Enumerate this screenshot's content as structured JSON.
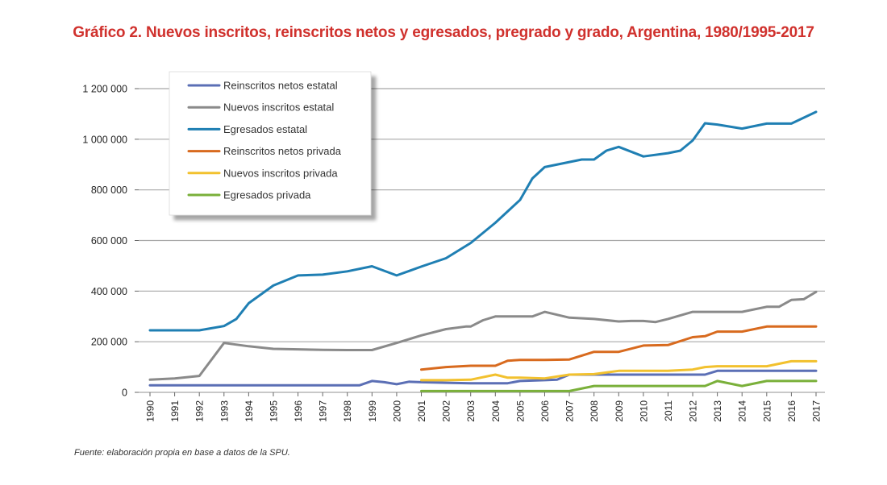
{
  "chart_data": {
    "type": "line",
    "title": "Gráfico 2. Nuevos inscritos, reinscritos netos y egresados, pregrado y grado, Argentina, 1980/1995-2017",
    "source": "Fuente: elaboración propia en base a datos de la SPU.",
    "xlabel": "",
    "ylabel": "",
    "ylim": [
      0,
      1200000
    ],
    "xlim": [
      1990,
      2017
    ],
    "yticks": [
      0,
      200000,
      400000,
      600000,
      800000,
      1000000,
      1200000
    ],
    "ytick_labels": [
      "0",
      "200 000",
      "400 000",
      "600 000",
      "800 000",
      "1 000 000",
      "1 200 000"
    ],
    "xtick_labels": [
      "1990",
      "1991",
      "1992",
      "1993",
      "1994",
      "1995",
      "1996",
      "1997",
      "1998",
      "1999",
      "2000",
      "2001",
      "2002",
      "2003",
      "2004",
      "2005",
      "2006",
      "2007",
      "2008",
      "2009",
      "2010",
      "2011",
      "2012",
      "2013",
      "2014",
      "2015",
      "2016",
      "2017"
    ],
    "grid": true,
    "legend_position": "top-left",
    "series": [
      {
        "name": "Reinscritos netos estatal",
        "color": "#5b6fb5",
        "x": [
          1990,
          1991,
          1992,
          1993,
          1994,
          1995,
          1996,
          1997,
          1998,
          1998.5,
          1999,
          1999.5,
          2000,
          2000.5,
          2001,
          2002,
          2003,
          2004,
          2004.5,
          2005,
          2006,
          2006.5,
          2007,
          2008,
          2009,
          2010,
          2011,
          2012,
          2012.5,
          2013,
          2014,
          2015,
          2016,
          2017
        ],
        "y": [
          28000,
          28000,
          28000,
          28000,
          28000,
          28000,
          28000,
          28000,
          28000,
          28000,
          45000,
          40000,
          32000,
          42000,
          40000,
          38000,
          36000,
          36000,
          36000,
          45000,
          48000,
          50000,
          70000,
          70000,
          70000,
          70000,
          70000,
          70000,
          70000,
          85000,
          85000,
          85000,
          85000,
          85000
        ]
      },
      {
        "name": "Nuevos inscritos estatal",
        "color": "#8a8a8a",
        "x": [
          1990,
          1991,
          1992,
          1993,
          1994,
          1995,
          1996,
          1997,
          1998,
          1999,
          2000,
          2001,
          2002,
          2002.8,
          2003,
          2003.5,
          2004,
          2005,
          2005.5,
          2006,
          2007,
          2008,
          2009,
          2009.5,
          2010,
          2010.5,
          2011,
          2012,
          2013,
          2014,
          2015,
          2015.5,
          2016,
          2016.5,
          2017
        ],
        "y": [
          50000,
          55000,
          65000,
          195000,
          182000,
          172000,
          170000,
          168000,
          167000,
          167000,
          195000,
          225000,
          250000,
          260000,
          260000,
          285000,
          300000,
          300000,
          300000,
          318000,
          295000,
          290000,
          280000,
          282000,
          282000,
          278000,
          290000,
          318000,
          318000,
          318000,
          338000,
          338000,
          365000,
          368000,
          397000
        ]
      },
      {
        "name": "Egresados estatal",
        "color": "#1f7fb3",
        "x": [
          1990,
          1991,
          1992,
          1993,
          1993.5,
          1994,
          1995,
          1996,
          1997,
          1998,
          1999,
          2000,
          2001,
          2002,
          2003,
          2004,
          2005,
          2005.5,
          2006,
          2007,
          2007.5,
          2008,
          2008.5,
          2009,
          2010,
          2011,
          2011.5,
          2012,
          2012.5,
          2013,
          2014,
          2015,
          2016,
          2017
        ],
        "y": [
          245000,
          245000,
          245000,
          262000,
          290000,
          352000,
          422000,
          462000,
          465000,
          478000,
          498000,
          462000,
          497000,
          530000,
          590000,
          670000,
          760000,
          845000,
          890000,
          910000,
          920000,
          920000,
          955000,
          970000,
          932000,
          945000,
          955000,
          995000,
          1063000,
          1058000,
          1042000,
          1062000,
          1062000,
          1108000
        ]
      },
      {
        "name": "Reinscritos netos privada",
        "color": "#d86a1e",
        "x": [
          2001,
          2002,
          2003,
          2004,
          2004.5,
          2005,
          2006,
          2007,
          2008,
          2009,
          2010,
          2011,
          2012,
          2012.5,
          2013,
          2014,
          2015,
          2016,
          2017
        ],
        "y": [
          90000,
          100000,
          105000,
          105000,
          125000,
          128000,
          128000,
          130000,
          160000,
          160000,
          185000,
          187000,
          218000,
          222000,
          240000,
          240000,
          260000,
          260000,
          260000
        ]
      },
      {
        "name": "Nuevos inscritos privada",
        "color": "#f2c12e",
        "x": [
          2001,
          2002,
          2003,
          2004,
          2004.5,
          2005,
          2006,
          2007,
          2008,
          2009,
          2010,
          2011,
          2012,
          2012.5,
          2013,
          2014,
          2015,
          2016,
          2017
        ],
        "y": [
          48000,
          48000,
          50000,
          70000,
          58000,
          58000,
          55000,
          70000,
          72000,
          85000,
          85000,
          85000,
          90000,
          100000,
          103000,
          103000,
          103000,
          123000,
          123000
        ]
      },
      {
        "name": "Egresados privada",
        "color": "#7ab03a",
        "x": [
          2001,
          2002,
          2003,
          2004,
          2005,
          2006,
          2007,
          2008,
          2009,
          2010,
          2011,
          2012,
          2012.5,
          2013,
          2014,
          2015,
          2016,
          2017
        ],
        "y": [
          5000,
          5000,
          5000,
          5000,
          5000,
          5000,
          5000,
          25000,
          25000,
          25000,
          25000,
          25000,
          25000,
          45000,
          25000,
          45000,
          45000,
          45000
        ]
      }
    ]
  }
}
